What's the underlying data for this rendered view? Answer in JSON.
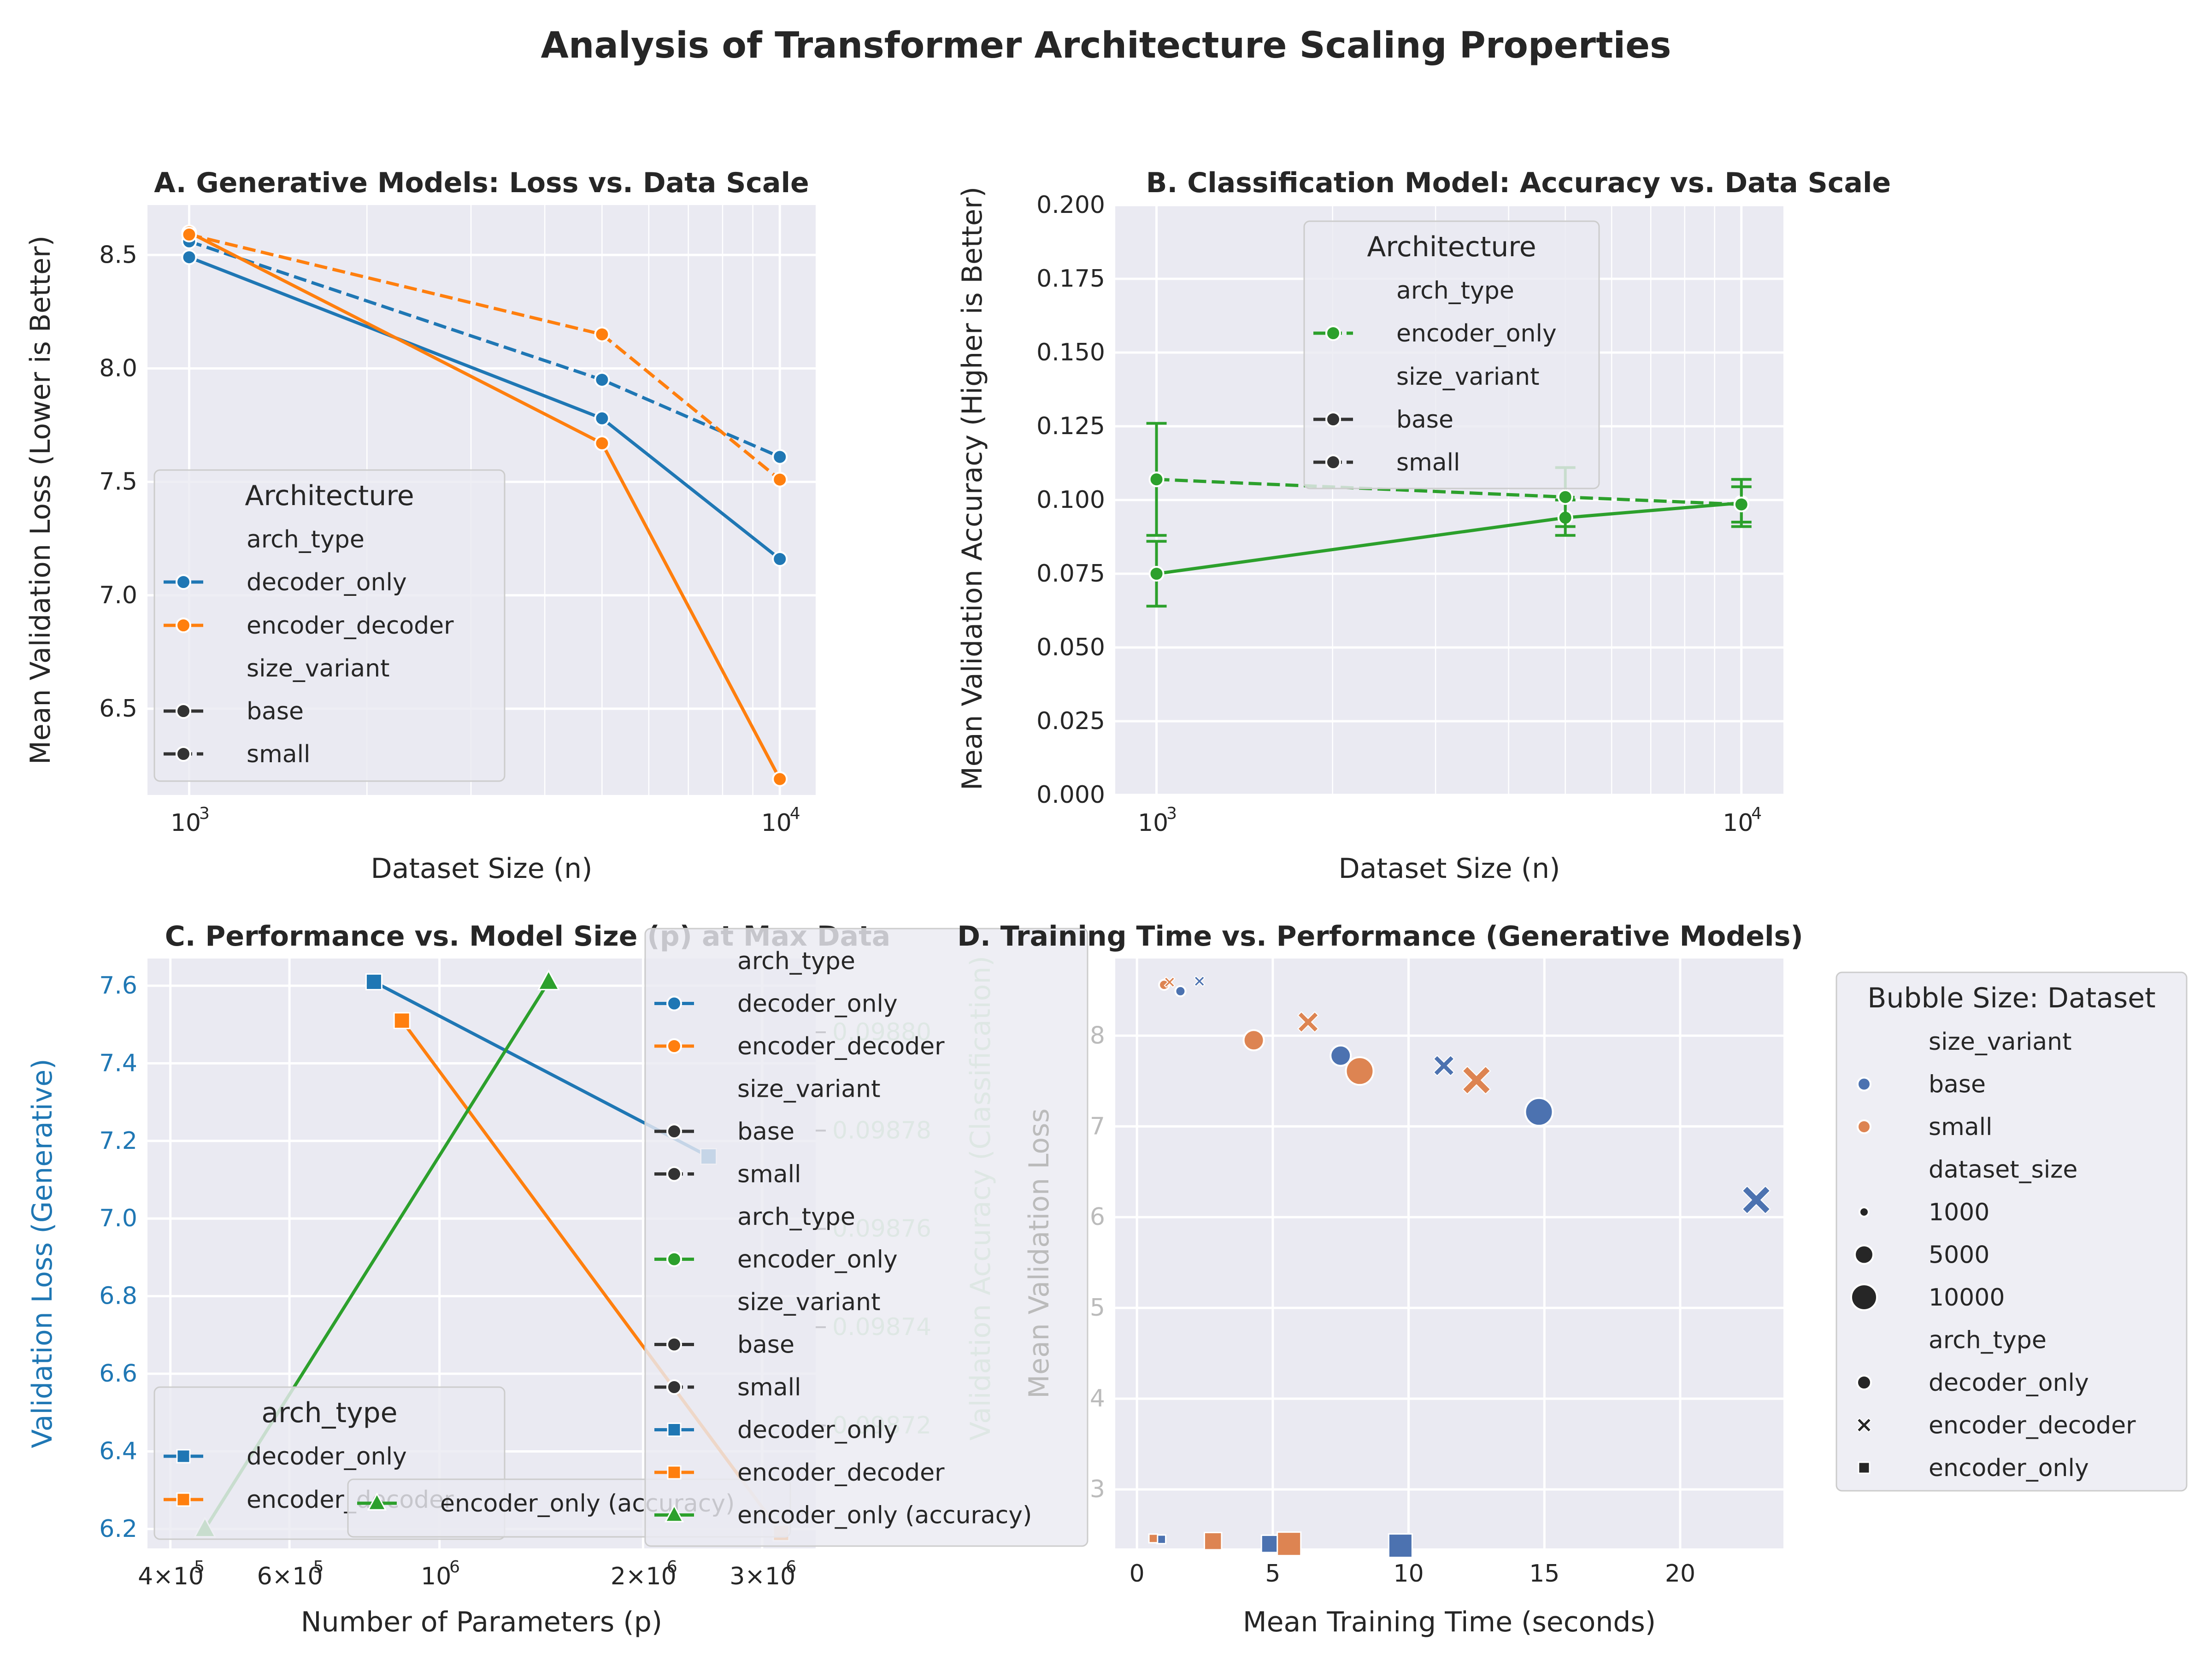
{
  "title": "Analysis of Transformer Architecture Scaling Properties",
  "colors": {
    "blue": "#1f77b4",
    "orange": "#ff7f0e",
    "green": "#2ca02c",
    "dblue": "#4c72b0",
    "dorange": "#dd8452",
    "bg": "#eaeaf2"
  },
  "chart_data": [
    {
      "id": "A",
      "type": "line",
      "title": "A. Generative Models: Loss vs. Data Scale",
      "xlabel": "Dataset Size (n)",
      "ylabel": "Mean Validation Loss (Lower is Better)",
      "xscale": "log",
      "xticks": [
        {
          "v": 1000,
          "base": "10",
          "exp": "3"
        },
        {
          "v": 10000,
          "base": "10",
          "exp": "4"
        }
      ],
      "yticks": [
        "6.5",
        "7.0",
        "7.5",
        "8.0",
        "8.5"
      ],
      "xlim": [
        850,
        11500
      ],
      "ylim": [
        6.12,
        8.72
      ],
      "series": [
        {
          "name": "decoder_only",
          "variant": "base",
          "color": "blue",
          "dash": false,
          "x": [
            1000,
            5000,
            10000
          ],
          "y": [
            8.49,
            7.78,
            7.16
          ]
        },
        {
          "name": "decoder_only",
          "variant": "small",
          "color": "blue",
          "dash": true,
          "x": [
            1000,
            5000,
            10000
          ],
          "y": [
            8.56,
            7.95,
            7.61
          ]
        },
        {
          "name": "encoder_decoder",
          "variant": "base",
          "color": "orange",
          "dash": false,
          "x": [
            1000,
            5000,
            10000
          ],
          "y": [
            8.6,
            7.67,
            6.19
          ]
        },
        {
          "name": "encoder_decoder",
          "variant": "small",
          "color": "orange",
          "dash": true,
          "x": [
            1000,
            5000,
            10000
          ],
          "y": [
            8.59,
            8.15,
            7.51
          ]
        }
      ],
      "legend": {
        "title": "Architecture",
        "position": "lower-left",
        "entries": [
          "arch_type",
          "decoder_only",
          "encoder_decoder",
          "size_variant",
          "base",
          "small"
        ]
      }
    },
    {
      "id": "B",
      "type": "line",
      "title": "B. Classification Model: Accuracy vs. Data Scale",
      "xlabel": "Dataset Size (n)",
      "ylabel": "Mean Validation Accuracy (Higher is Better)",
      "xscale": "log",
      "xticks": [
        {
          "v": 1000,
          "base": "10",
          "exp": "3"
        },
        {
          "v": 10000,
          "base": "10",
          "exp": "4"
        }
      ],
      "yticks": [
        "0.000",
        "0.025",
        "0.050",
        "0.075",
        "0.100",
        "0.125",
        "0.150",
        "0.175",
        "0.200"
      ],
      "xlim": [
        850,
        11800
      ],
      "ylim": [
        0,
        0.2
      ],
      "series": [
        {
          "name": "encoder_only",
          "variant": "base",
          "color": "green",
          "dash": false,
          "x": [
            1000,
            5000,
            10000
          ],
          "y": [
            0.075,
            0.094,
            0.099
          ],
          "err": [
            0.011,
            0.006,
            0.008
          ]
        },
        {
          "name": "encoder_only",
          "variant": "small",
          "color": "green",
          "dash": true,
          "x": [
            1000,
            5000,
            10000
          ],
          "y": [
            0.107,
            0.101,
            0.0985
          ],
          "err": [
            0.019,
            0.01,
            0.006
          ]
        }
      ],
      "legend": {
        "title": "Architecture",
        "position": "upper-center",
        "entries": [
          "arch_type",
          "encoder_only",
          "size_variant",
          "base",
          "small"
        ]
      }
    },
    {
      "id": "C",
      "type": "line",
      "title": "C. Performance vs. Model Size (p) at Max Data",
      "xlabel": "Number of Parameters (p)",
      "ylabel": "Validation Loss (Generative)",
      "ylabel2": "Validation Accuracy (Classification)",
      "xscale": "log",
      "xticks": [
        {
          "v": 400000,
          "base": "4×10",
          "exp": "5"
        },
        {
          "v": 600000,
          "base": "6×10",
          "exp": "5"
        },
        {
          "v": 1000000,
          "base": "10",
          "exp": "6"
        },
        {
          "v": 2000000,
          "base": "2×10",
          "exp": "6"
        },
        {
          "v": 3000000,
          "base": "3×10",
          "exp": "6"
        }
      ],
      "yticks": [
        "6.2",
        "6.4",
        "6.6",
        "6.8",
        "7.0",
        "7.2",
        "7.4",
        "7.6"
      ],
      "yticks2": [
        "0.09872",
        "0.09874",
        "0.09876",
        "0.09878",
        "0.09880"
      ],
      "xlim": [
        370000,
        3600000
      ],
      "ylim": [
        6.15,
        7.67
      ],
      "ylim2": [
        0.098695,
        0.098815
      ],
      "series": [
        {
          "name": "decoder_only",
          "color": "blue",
          "marker": "square",
          "axis": "left",
          "x": [
            800000,
            2500000
          ],
          "y": [
            7.61,
            7.16
          ]
        },
        {
          "name": "encoder_decoder",
          "color": "orange",
          "marker": "square",
          "axis": "left",
          "x": [
            880000,
            3200000
          ],
          "y": [
            7.51,
            6.19
          ]
        },
        {
          "name": "encoder_only (accuracy)",
          "color": "green",
          "marker": "triangle",
          "axis": "left",
          "x": [
            450000,
            1450000
          ],
          "y": [
            6.2,
            7.61
          ]
        }
      ],
      "legend_left": {
        "title": "arch_type",
        "entries": [
          "decoder_only",
          "encoder_decoder"
        ]
      },
      "legend_mid": {
        "entries": [
          "encoder_only (accuracy)"
        ]
      },
      "legend_right": {
        "entries": [
          "arch_type",
          "decoder_only",
          "encoder_decoder",
          "size_variant",
          "base",
          "small",
          "arch_type",
          "encoder_only",
          "size_variant",
          "base",
          "small",
          "decoder_only",
          "encoder_decoder",
          "encoder_only (accuracy)"
        ]
      }
    },
    {
      "id": "D",
      "type": "scatter",
      "title": "D. Training Time vs. Performance (Generative Models)",
      "xlabel": "Mean Training Time (seconds)",
      "ylabel": "Mean Validation Loss",
      "xticks": [
        "0",
        "5",
        "10",
        "15",
        "20"
      ],
      "yticks": [
        "3",
        "4",
        "5",
        "6",
        "7",
        "8"
      ],
      "xlim": [
        -0.8,
        23.8
      ],
      "ylim": [
        2.35,
        8.85
      ],
      "points": [
        {
          "x": 1.6,
          "y": 8.49,
          "variant": "base",
          "marker": "circle",
          "size": 1000
        },
        {
          "x": 7.5,
          "y": 7.78,
          "variant": "base",
          "marker": "circle",
          "size": 5000
        },
        {
          "x": 14.8,
          "y": 7.16,
          "variant": "base",
          "marker": "circle",
          "size": 10000
        },
        {
          "x": 1.0,
          "y": 8.56,
          "variant": "small",
          "marker": "circle",
          "size": 1000
        },
        {
          "x": 4.3,
          "y": 7.95,
          "variant": "small",
          "marker": "circle",
          "size": 5000
        },
        {
          "x": 8.2,
          "y": 7.61,
          "variant": "small",
          "marker": "circle",
          "size": 10000
        },
        {
          "x": 2.3,
          "y": 8.6,
          "variant": "base",
          "marker": "x",
          "size": 1000
        },
        {
          "x": 11.3,
          "y": 7.67,
          "variant": "base",
          "marker": "x",
          "size": 5000
        },
        {
          "x": 22.8,
          "y": 6.19,
          "variant": "base",
          "marker": "x",
          "size": 10000
        },
        {
          "x": 1.2,
          "y": 8.59,
          "variant": "small",
          "marker": "x",
          "size": 1000
        },
        {
          "x": 6.3,
          "y": 8.15,
          "variant": "small",
          "marker": "x",
          "size": 5000
        },
        {
          "x": 12.5,
          "y": 7.51,
          "variant": "small",
          "marker": "x",
          "size": 10000
        },
        {
          "x": 0.9,
          "y": 2.45,
          "variant": "base",
          "marker": "square",
          "size": 1000
        },
        {
          "x": 4.9,
          "y": 2.4,
          "variant": "base",
          "marker": "square",
          "size": 5000
        },
        {
          "x": 9.7,
          "y": 2.38,
          "variant": "base",
          "marker": "square",
          "size": 10000
        },
        {
          "x": 0.6,
          "y": 2.46,
          "variant": "small",
          "marker": "square",
          "size": 1000
        },
        {
          "x": 2.8,
          "y": 2.43,
          "variant": "small",
          "marker": "square",
          "size": 5000
        },
        {
          "x": 5.6,
          "y": 2.4,
          "variant": "small",
          "marker": "square",
          "size": 10000
        }
      ],
      "legend": {
        "title": "Bubble Size: Dataset",
        "position": "outside-right",
        "entries": [
          "size_variant",
          "base",
          "small",
          "dataset_size",
          "1000",
          "5000",
          "10000",
          "arch_type",
          "decoder_only",
          "encoder_decoder",
          "encoder_only"
        ]
      }
    }
  ]
}
